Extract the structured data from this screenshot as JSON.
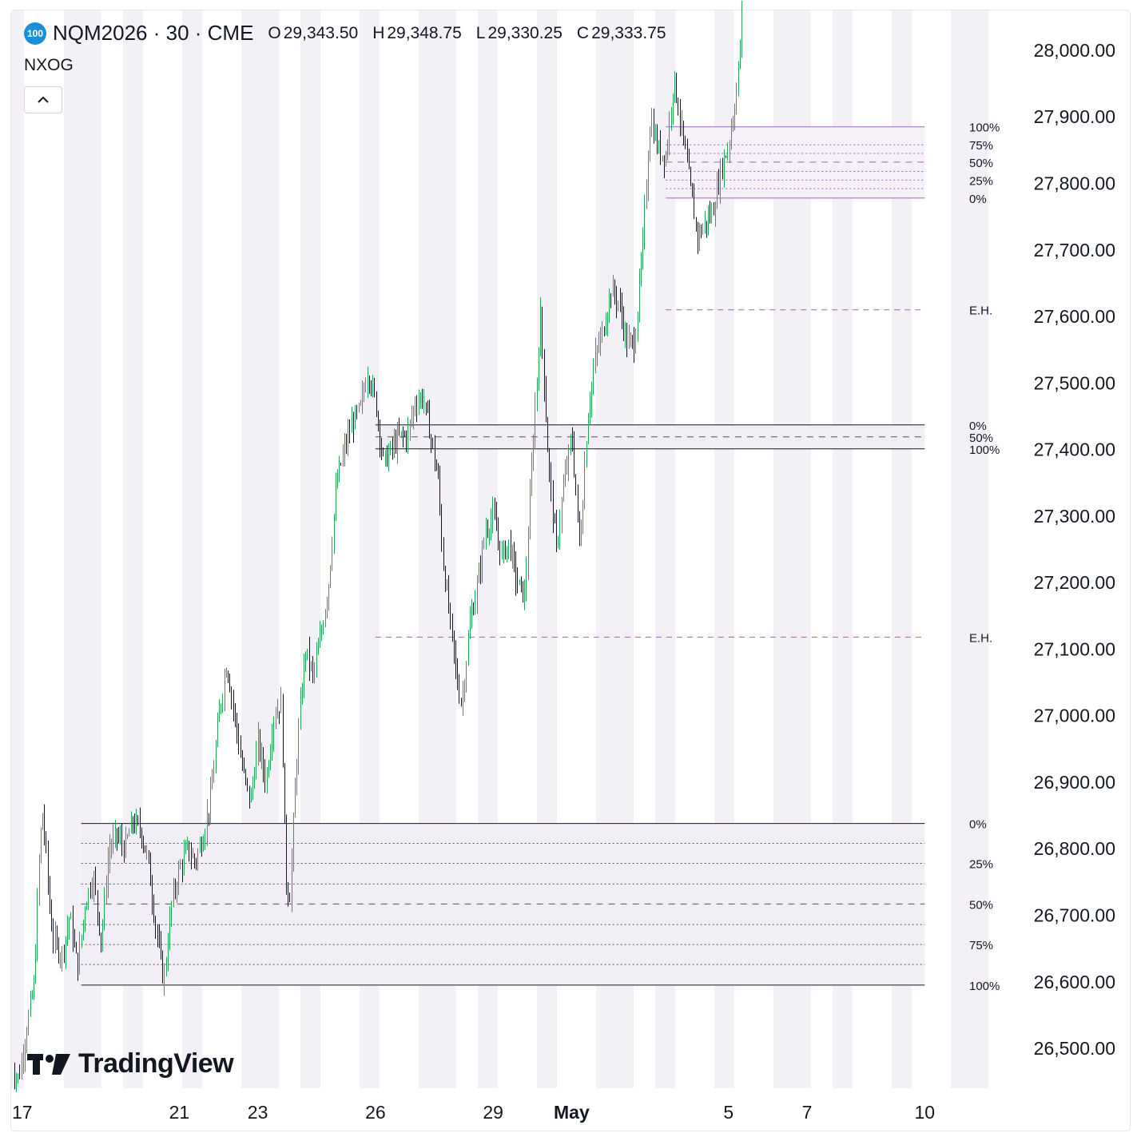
{
  "header": {
    "badge": "100",
    "symbol_line": "NQM2026 · 30 · CME",
    "ohlc": [
      {
        "key": "O",
        "value": "29,343.50"
      },
      {
        "key": "H",
        "value": "29,348.75"
      },
      {
        "key": "L",
        "value": "29,330.25"
      },
      {
        "key": "C",
        "value": "29,333.75"
      }
    ],
    "indicator": "NXOG"
  },
  "logo": {
    "text": "TradingView"
  },
  "colors": {
    "up": "#26a65b",
    "down": "#131722",
    "zone_fill": "#f1eef5",
    "band": "#f4f1f6",
    "purple": "#9c64b8",
    "dark_line": "#131722",
    "axis_text": "#131722"
  },
  "chart_data": {
    "type": "candlestick",
    "title": "",
    "ylim": [
      26440,
      28060
    ],
    "y_ticks": [
      "28,000.00",
      "27,900.00",
      "27,800.00",
      "27,700.00",
      "27,600.00",
      "27,500.00",
      "27,400.00",
      "27,300.00",
      "27,200.00",
      "27,100.00",
      "27,000.00",
      "26,900.00",
      "26,800.00",
      "26,700.00",
      "26,600.00",
      "26,500.00"
    ],
    "y_tick_values": [
      28000,
      27900,
      27800,
      27700,
      27600,
      27500,
      27400,
      27300,
      27200,
      27100,
      27000,
      26900,
      26800,
      26700,
      26600,
      26500
    ],
    "x_ticks": [
      {
        "label": "17",
        "day": 0,
        "bold": false
      },
      {
        "label": "21",
        "day": 4,
        "bold": false
      },
      {
        "label": "23",
        "day": 6,
        "bold": false
      },
      {
        "label": "26",
        "day": 9,
        "bold": false
      },
      {
        "label": "29",
        "day": 12,
        "bold": false
      },
      {
        "label": "May",
        "day": 14,
        "bold": true
      },
      {
        "label": "5",
        "day": 18,
        "bold": false
      },
      {
        "label": "7",
        "day": 20,
        "bold": false
      },
      {
        "label": "10",
        "day": 23,
        "bold": false
      }
    ],
    "price_path": [
      [
        0.0,
        26470
      ],
      [
        0.2,
        26455
      ],
      [
        0.4,
        26530
      ],
      [
        0.6,
        26600
      ],
      [
        0.7,
        26760
      ],
      [
        0.8,
        26860
      ],
      [
        0.9,
        26790
      ],
      [
        1.0,
        26700
      ],
      [
        1.1,
        26660
      ],
      [
        1.3,
        26640
      ],
      [
        1.5,
        26700
      ],
      [
        1.7,
        26620
      ],
      [
        1.9,
        26720
      ],
      [
        2.1,
        26760
      ],
      [
        2.3,
        26660
      ],
      [
        2.5,
        26800
      ],
      [
        2.7,
        26820
      ],
      [
        2.9,
        26800
      ],
      [
        3.1,
        26840
      ],
      [
        3.3,
        26830
      ],
      [
        3.5,
        26780
      ],
      [
        3.7,
        26680
      ],
      [
        3.9,
        26600
      ],
      [
        4.1,
        26720
      ],
      [
        4.3,
        26770
      ],
      [
        4.5,
        26800
      ],
      [
        4.7,
        26780
      ],
      [
        4.9,
        26820
      ],
      [
        5.1,
        26880
      ],
      [
        5.3,
        27000
      ],
      [
        5.5,
        27080
      ],
      [
        5.7,
        27000
      ],
      [
        5.9,
        26920
      ],
      [
        6.1,
        26870
      ],
      [
        6.3,
        26960
      ],
      [
        6.5,
        26900
      ],
      [
        6.7,
        27000
      ],
      [
        6.9,
        27020
      ],
      [
        7.0,
        26760
      ],
      [
        7.1,
        26720
      ],
      [
        7.3,
        26950
      ],
      [
        7.5,
        27100
      ],
      [
        7.7,
        27060
      ],
      [
        7.9,
        27120
      ],
      [
        8.1,
        27200
      ],
      [
        8.3,
        27350
      ],
      [
        8.5,
        27400
      ],
      [
        8.7,
        27440
      ],
      [
        8.9,
        27460
      ],
      [
        9.1,
        27520
      ],
      [
        9.3,
        27470
      ],
      [
        9.5,
        27380
      ],
      [
        9.7,
        27400
      ],
      [
        9.9,
        27420
      ],
      [
        10.1,
        27420
      ],
      [
        10.3,
        27470
      ],
      [
        10.5,
        27480
      ],
      [
        10.7,
        27420
      ],
      [
        10.9,
        27350
      ],
      [
        11.0,
        27240
      ],
      [
        11.2,
        27140
      ],
      [
        11.4,
        27040
      ],
      [
        11.5,
        27020
      ],
      [
        11.7,
        27140
      ],
      [
        11.9,
        27200
      ],
      [
        12.1,
        27280
      ],
      [
        12.3,
        27300
      ],
      [
        12.5,
        27240
      ],
      [
        12.7,
        27260
      ],
      [
        12.9,
        27200
      ],
      [
        13.1,
        27180
      ],
      [
        13.3,
        27400
      ],
      [
        13.5,
        27600
      ],
      [
        13.7,
        27380
      ],
      [
        13.9,
        27250
      ],
      [
        14.1,
        27350
      ],
      [
        14.3,
        27420
      ],
      [
        14.5,
        27250
      ],
      [
        14.7,
        27450
      ],
      [
        14.9,
        27540
      ],
      [
        15.1,
        27580
      ],
      [
        15.3,
        27640
      ],
      [
        15.5,
        27620
      ],
      [
        15.7,
        27560
      ],
      [
        15.9,
        27560
      ],
      [
        16.1,
        27700
      ],
      [
        16.3,
        27900
      ],
      [
        16.5,
        27850
      ],
      [
        16.7,
        27840
      ],
      [
        16.9,
        27960
      ],
      [
        17.1,
        27880
      ],
      [
        17.3,
        27800
      ],
      [
        17.5,
        27720
      ],
      [
        17.7,
        27740
      ],
      [
        17.9,
        27760
      ],
      [
        18.1,
        27820
      ],
      [
        18.3,
        27860
      ],
      [
        18.5,
        27940
      ],
      [
        18.65,
        28060
      ]
    ],
    "fib_zones": [
      {
        "name": "upper",
        "day_start": 16.4,
        "day_end": 23.0,
        "top": 27885,
        "bottom": 27778,
        "fill": false,
        "lines": [
          {
            "price": 27885,
            "style": "solid",
            "label": "100%"
          },
          {
            "price": 27858,
            "style": "dotted",
            "label": "75%"
          },
          {
            "price": 27845,
            "style": "dotted",
            "label": ""
          },
          {
            "price": 27832,
            "style": "dashed",
            "label": "50%"
          },
          {
            "price": 27818,
            "style": "dotted",
            "label": ""
          },
          {
            "price": 27805,
            "style": "dotted",
            "label": "25%"
          },
          {
            "price": 27792,
            "style": "dotted",
            "label": ""
          },
          {
            "price": 27778,
            "style": "solid",
            "label": "0%"
          }
        ]
      },
      {
        "name": "middle",
        "day_start": 9.0,
        "day_end": 23.0,
        "top": 27437,
        "bottom": 27401,
        "fill": true,
        "lines": [
          {
            "price": 27437,
            "style": "solid",
            "label": "0%"
          },
          {
            "price": 27419,
            "style": "dashed",
            "label": "50%"
          },
          {
            "price": 27401,
            "style": "solid",
            "label": "100%"
          }
        ]
      },
      {
        "name": "lower",
        "day_start": 1.5,
        "day_end": 23.0,
        "top": 26838,
        "bottom": 26595,
        "fill": true,
        "lines": [
          {
            "price": 26838,
            "style": "solid",
            "label": "0%"
          },
          {
            "price": 26808,
            "style": "dotted",
            "label": ""
          },
          {
            "price": 26778,
            "style": "dotted",
            "label": "25%"
          },
          {
            "price": 26747,
            "style": "dotted",
            "label": ""
          },
          {
            "price": 26717,
            "style": "dashed",
            "label": "50%"
          },
          {
            "price": 26686,
            "style": "dotted",
            "label": ""
          },
          {
            "price": 26656,
            "style": "dotted",
            "label": "75%"
          },
          {
            "price": 26626,
            "style": "dotted",
            "label": ""
          },
          {
            "price": 26595,
            "style": "solid",
            "label": "100%"
          }
        ]
      }
    ],
    "eh_lines": [
      {
        "label": "E.H.",
        "price": 27610,
        "day_start": 16.4,
        "day_end": 23.0
      },
      {
        "label": "E.H.",
        "price": 27118,
        "day_start": 9.0,
        "day_end": 23.0
      }
    ]
  }
}
